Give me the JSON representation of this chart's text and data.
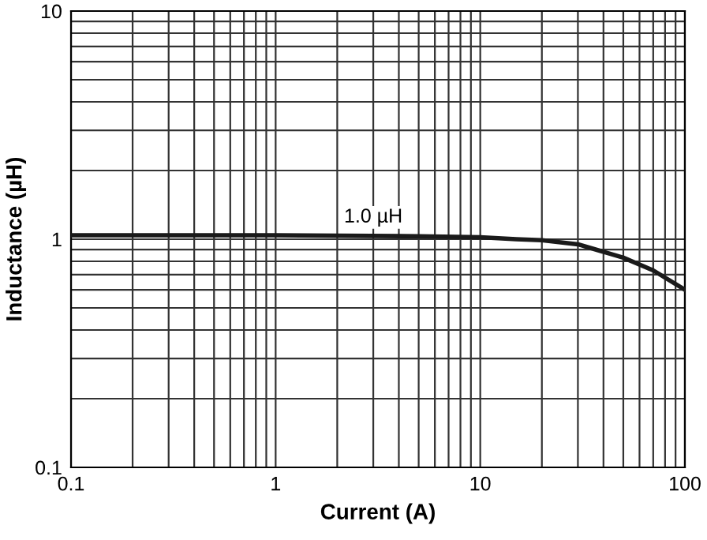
{
  "chart_data": {
    "type": "line",
    "xlabel": "Current (A)",
    "ylabel": "Inductance (µH)",
    "log": "xy",
    "x": [
      0.1,
      0.5,
      1,
      5,
      10,
      15,
      20,
      30,
      50,
      70,
      100
    ],
    "series": [
      {
        "color": "#1a1a1a",
        "values": [
          1.04,
          1.04,
          1.04,
          1.03,
          1.02,
          1.0,
          0.99,
          0.95,
          0.83,
          0.73,
          0.6
        ]
      }
    ],
    "xlim": [
      0.1,
      100
    ],
    "ylim": [
      0.1,
      10
    ],
    "xticks": [
      {
        "value": 0.1,
        "label": "0.1"
      },
      {
        "value": 0.2,
        "label": null
      },
      {
        "value": 0.3,
        "label": null
      },
      {
        "value": 0.4,
        "label": null
      },
      {
        "value": 0.5,
        "label": null
      },
      {
        "value": 0.6,
        "label": null
      },
      {
        "value": 0.7,
        "label": null
      },
      {
        "value": 0.8,
        "label": null
      },
      {
        "value": 0.9,
        "label": null
      },
      1,
      {
        "value": 2,
        "label": null
      },
      {
        "value": 3,
        "label": null
      },
      {
        "value": 4,
        "label": null
      },
      {
        "value": 5,
        "label": null
      },
      {
        "value": 6,
        "label": null
      },
      {
        "value": 7,
        "label": null
      },
      {
        "value": 8,
        "label": null
      },
      {
        "value": 9,
        "label": null
      },
      10,
      {
        "value": 20,
        "label": null
      },
      {
        "value": 30,
        "label": null
      },
      {
        "value": 40,
        "label": null
      },
      {
        "value": 50,
        "label": null
      },
      {
        "value": 60,
        "label": null
      },
      {
        "value": 70,
        "label": null
      },
      {
        "value": 80,
        "label": null
      },
      {
        "value": 90,
        "label": null
      },
      100
    ],
    "yticks": [
      {
        "value": 0.1,
        "label": "0.1"
      },
      {
        "value": 0.2,
        "label": null
      },
      {
        "value": 0.3,
        "label": null
      },
      {
        "value": 0.4,
        "label": null
      },
      {
        "value": 0.5,
        "label": null
      },
      {
        "value": 0.6,
        "label": null
      },
      {
        "value": 0.7,
        "label": null
      },
      {
        "value": 0.8,
        "label": null
      },
      {
        "value": 0.9,
        "label": null
      },
      1,
      {
        "value": 2,
        "label": null
      },
      {
        "value": 3,
        "label": null
      },
      {
        "value": 4,
        "label": null
      },
      {
        "value": 5,
        "label": null
      },
      {
        "value": 6,
        "label": null
      },
      {
        "value": 7,
        "label": null
      },
      {
        "value": 8,
        "label": null
      },
      {
        "value": 9,
        "label": null
      },
      10
    ],
    "grid": true,
    "marker": "none",
    "line_style": "solid",
    "annotations": [
      {
        "text": "1.0 µH",
        "x": 3,
        "y": 1.04
      }
    ]
  }
}
